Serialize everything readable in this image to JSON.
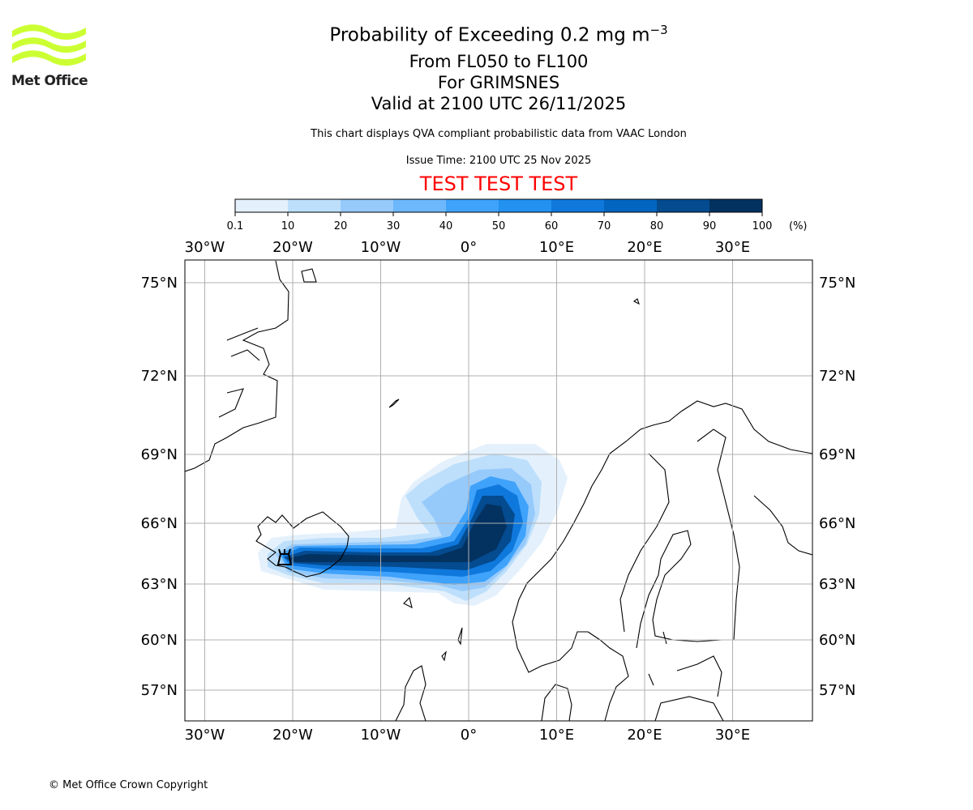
{
  "logo": {
    "text": "Met Office",
    "color": "#ccff33"
  },
  "title": {
    "line1": "Probability of Exceeding 0.2 mg m",
    "line1_sup": "−3",
    "line2": "From FL050 to FL100",
    "line3": "For GRIMSNES",
    "line4": "Valid at 2100 UTC 26/11/2025"
  },
  "subtitle": "This chart displays QVA compliant probabilistic data from VAAC London",
  "issue_time": "Issue Time: 2100 UTC 25 Nov 2025",
  "test_banner": "TEST TEST TEST",
  "colorbar": {
    "ticks": [
      "0.1",
      "10",
      "20",
      "30",
      "40",
      "50",
      "60",
      "70",
      "80",
      "90",
      "100"
    ],
    "unit": "(%)",
    "colors": [
      "#e4f1fc",
      "#bddffb",
      "#96cafb",
      "#6db8fc",
      "#3fa2fb",
      "#2291f0",
      "#0f78dc",
      "#0265bf",
      "#044b90",
      "#033260"
    ]
  },
  "map": {
    "lon_ticks": [
      {
        "value": -30,
        "label": "30°W"
      },
      {
        "value": -20,
        "label": "20°W"
      },
      {
        "value": -10,
        "label": "10°W"
      },
      {
        "value": 0,
        "label": "0°"
      },
      {
        "value": 10,
        "label": "10°E"
      },
      {
        "value": 20,
        "label": "20°E"
      },
      {
        "value": 30,
        "label": "30°E"
      }
    ],
    "lat_ticks": [
      {
        "value": 75,
        "label": "75°N"
      },
      {
        "value": 72,
        "label": "72°N"
      },
      {
        "value": 69,
        "label": "69°N"
      },
      {
        "value": 66,
        "label": "66°N"
      },
      {
        "value": 63,
        "label": "63°N"
      },
      {
        "value": 60,
        "label": "60°N"
      },
      {
        "value": 57,
        "label": "57°N"
      }
    ],
    "source_volcano": "GRIMSNES"
  },
  "copyright": "© Met Office Crown Copyright"
}
